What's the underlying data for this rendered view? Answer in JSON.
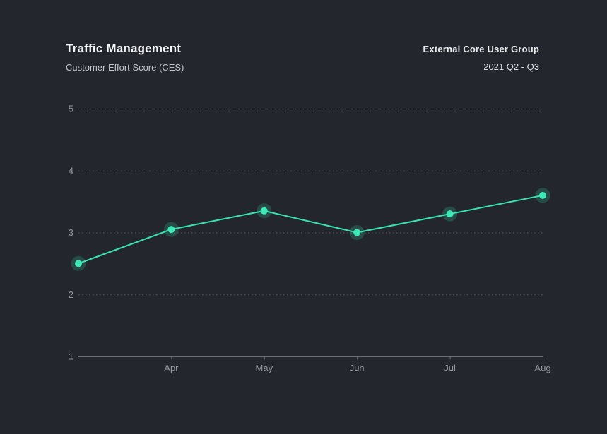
{
  "header": {
    "title": "Traffic Management",
    "subtitle": "Customer Effort Score (CES)",
    "group": "External Core User Group",
    "period": "2021 Q2 - Q3"
  },
  "chart_data": {
    "type": "line",
    "title": "Traffic Management",
    "subtitle": "Customer Effort Score (CES)",
    "annotation_top_right": {
      "line1": "External Core User Group",
      "line2": "2021 Q2 - Q3"
    },
    "categories": [
      "",
      "Apr",
      "May",
      "Jun",
      "Jul",
      "Aug"
    ],
    "values": [
      2.5,
      3.05,
      3.35,
      3.0,
      3.3,
      3.6
    ],
    "y_ticks": [
      5,
      4,
      3,
      2,
      1
    ],
    "ylim": [
      1,
      5
    ],
    "xlabel": "",
    "ylabel": "",
    "grid": "horizontal-dotted",
    "legend": "none"
  },
  "colors": {
    "background": "#23262d",
    "title": "#f3f4f6",
    "subtitle": "#c5c7cb",
    "axis_label": "#95979d",
    "gridline": "#53565d",
    "axis_line": "#6e7075",
    "line": "#38e3ae",
    "point": "#3fe9b5",
    "point_halo": "rgba(56, 227, 174, 0.20)"
  }
}
